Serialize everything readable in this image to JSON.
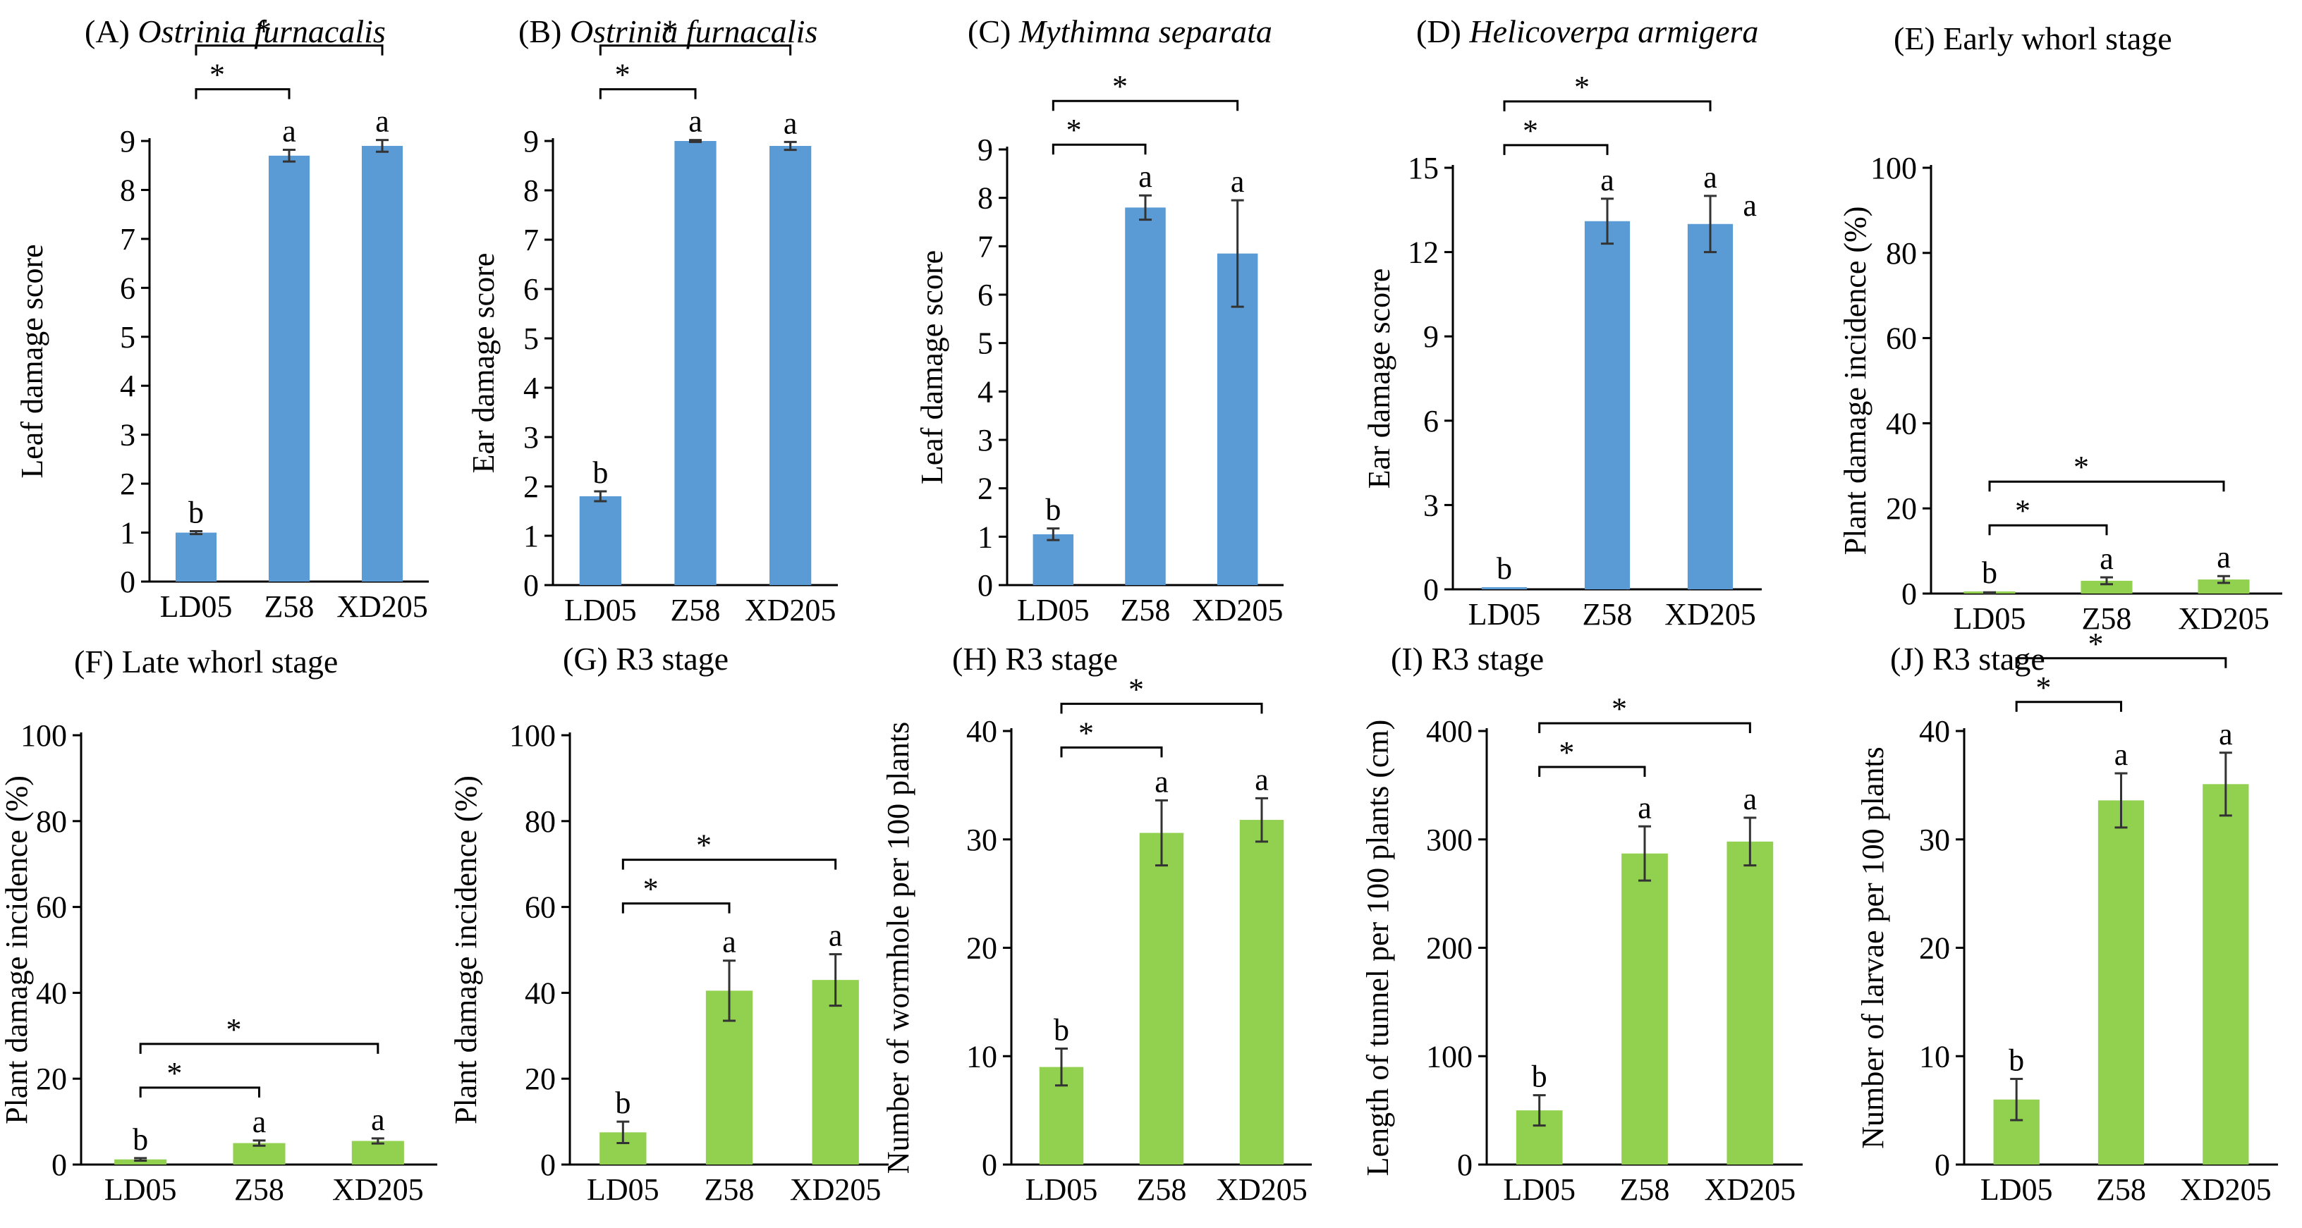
{
  "colors": {
    "blue": "#5b9bd5",
    "green": "#92d050",
    "axis": "#000000",
    "error": "#333333"
  },
  "chart_data": [
    {
      "id": "A",
      "type": "bar",
      "title_prefix": "(A) ",
      "title_italic": "Ostrinia furnacalis",
      "ylabel": "Leaf damage score",
      "ylim": [
        0,
        9
      ],
      "yticks": [
        "0",
        "1",
        "2",
        "3",
        "4",
        "5",
        "6",
        "7",
        "8",
        "9"
      ],
      "categories": [
        "LD05",
        "Z58",
        "XD205"
      ],
      "values": [
        1.0,
        8.7,
        8.9
      ],
      "errors": [
        0.03,
        0.12,
        0.12
      ],
      "letters": [
        "b",
        "a",
        "a"
      ],
      "color": "blue",
      "brackets": [
        {
          "from": 0,
          "to": 1,
          "label": "*"
        },
        {
          "from": 0,
          "to": 2,
          "label": "*"
        }
      ]
    },
    {
      "id": "B",
      "type": "bar",
      "title_prefix": "(B) ",
      "title_italic": "Ostrinia furnacalis",
      "ylabel": "Ear damage score",
      "ylim": [
        0,
        9
      ],
      "yticks": [
        "0",
        "1",
        "2",
        "3",
        "4",
        "5",
        "6",
        "7",
        "8",
        "9"
      ],
      "categories": [
        "LD05",
        "Z58",
        "XD205"
      ],
      "values": [
        1.8,
        9.0,
        8.9
      ],
      "errors": [
        0.1,
        0.02,
        0.08
      ],
      "letters": [
        "b",
        "a",
        "a"
      ],
      "color": "blue",
      "brackets": [
        {
          "from": 0,
          "to": 1,
          "label": "*"
        },
        {
          "from": 0,
          "to": 2,
          "label": "*"
        }
      ]
    },
    {
      "id": "C",
      "type": "bar",
      "title_prefix": "(C) ",
      "title_italic": "Mythimna separata",
      "ylabel": "Leaf damage score",
      "ylim": [
        0,
        9
      ],
      "yticks": [
        "0",
        "1",
        "2",
        "3",
        "4",
        "5",
        "6",
        "7",
        "8",
        "9"
      ],
      "categories": [
        "LD05",
        "Z58",
        "XD205"
      ],
      "values": [
        1.05,
        7.8,
        6.85
      ],
      "errors": [
        0.12,
        0.25,
        1.1
      ],
      "letters": [
        "b",
        "a",
        "a"
      ],
      "color": "blue",
      "brackets": [
        {
          "from": 0,
          "to": 1,
          "label": "*"
        },
        {
          "from": 0,
          "to": 2,
          "label": "*"
        }
      ]
    },
    {
      "id": "D",
      "type": "bar",
      "title_prefix": "(D) ",
      "title_italic": "Helicoverpa armigera",
      "ylabel": "Ear damage score",
      "ylim": [
        0,
        15
      ],
      "yticks": [
        "0",
        "3",
        "6",
        "9",
        "12",
        "15"
      ],
      "categories": [
        "LD05",
        "Z58",
        "XD205"
      ],
      "values": [
        0.05,
        13.1,
        13.0
      ],
      "errors": [
        0.0,
        0.8,
        1.0
      ],
      "letters": [
        "b",
        "a",
        "a"
      ],
      "color": "blue",
      "extra_letter": "a",
      "brackets": [
        {
          "from": 0,
          "to": 1,
          "label": "*"
        },
        {
          "from": 0,
          "to": 2,
          "label": "*"
        }
      ]
    },
    {
      "id": "E",
      "type": "bar",
      "title_prefix": "(E) Early whorl stage",
      "title_italic": "",
      "ylabel": "Plant damage incidence (%)",
      "ylim": [
        0,
        100
      ],
      "yticks": [
        "0",
        "20",
        "40",
        "60",
        "80",
        "100"
      ],
      "categories": [
        "LD05",
        "Z58",
        "XD205"
      ],
      "values": [
        0.2,
        3.0,
        3.3
      ],
      "errors": [
        0.1,
        0.8,
        0.8
      ],
      "letters": [
        "b",
        "a",
        "a"
      ],
      "color": "green",
      "brackets": [
        {
          "from": 0,
          "to": 1,
          "label": "*"
        },
        {
          "from": 0,
          "to": 2,
          "label": "*"
        }
      ]
    },
    {
      "id": "F",
      "type": "bar",
      "title_prefix": "(F) Late whorl stage",
      "title_italic": "",
      "ylabel": "Plant damage incidence (%)",
      "ylim": [
        0,
        100
      ],
      "yticks": [
        "0",
        "20",
        "40",
        "60",
        "80",
        "100"
      ],
      "categories": [
        "LD05",
        "Z58",
        "XD205"
      ],
      "values": [
        1.2,
        5.0,
        5.5
      ],
      "errors": [
        0.3,
        0.6,
        0.6
      ],
      "letters": [
        "b",
        "a",
        "a"
      ],
      "color": "green",
      "brackets": [
        {
          "from": 0,
          "to": 1,
          "label": "*"
        },
        {
          "from": 0,
          "to": 2,
          "label": "*"
        }
      ]
    },
    {
      "id": "G",
      "type": "bar",
      "title_prefix": "(G) R3 stage",
      "title_italic": "",
      "ylabel": "Plant damage incidence (%)",
      "ylim": [
        0,
        100
      ],
      "yticks": [
        "0",
        "20",
        "40",
        "60",
        "80",
        "100"
      ],
      "categories": [
        "LD05",
        "Z58",
        "XD205"
      ],
      "values": [
        7.5,
        40.5,
        43.0
      ],
      "errors": [
        2.5,
        7.0,
        6.0
      ],
      "letters": [
        "b",
        "a",
        "a"
      ],
      "color": "green",
      "brackets": [
        {
          "from": 0,
          "to": 1,
          "label": "*"
        },
        {
          "from": 0,
          "to": 2,
          "label": "*"
        }
      ]
    },
    {
      "id": "H",
      "type": "bar",
      "title_prefix": "(H) R3 stage",
      "title_italic": "",
      "ylabel": "Number of wormhole per 100 plants",
      "ylim": [
        0,
        40
      ],
      "yticks": [
        "0",
        "10",
        "20",
        "30",
        "40"
      ],
      "categories": [
        "LD05",
        "Z58",
        "XD205"
      ],
      "values": [
        9.0,
        30.6,
        31.8
      ],
      "errors": [
        1.7,
        3.0,
        2.0
      ],
      "letters": [
        "b",
        "a",
        "a"
      ],
      "color": "green",
      "brackets": [
        {
          "from": 0,
          "to": 1,
          "label": "*"
        },
        {
          "from": 0,
          "to": 2,
          "label": "*"
        }
      ]
    },
    {
      "id": "I",
      "type": "bar",
      "title_prefix": "(I) R3 stage",
      "title_italic": "",
      "ylabel": "Length of tunnel per 100 plants (cm)",
      "ylim": [
        0,
        400
      ],
      "yticks": [
        "0",
        "100",
        "200",
        "300",
        "400"
      ],
      "categories": [
        "LD05",
        "Z58",
        "XD205"
      ],
      "values": [
        50,
        287,
        298
      ],
      "errors": [
        14,
        25,
        22
      ],
      "letters": [
        "b",
        "a",
        "a"
      ],
      "color": "green",
      "brackets": [
        {
          "from": 0,
          "to": 1,
          "label": "*"
        },
        {
          "from": 0,
          "to": 2,
          "label": "*"
        }
      ]
    },
    {
      "id": "J",
      "type": "bar",
      "title_prefix": "(J) R3 stage",
      "title_italic": "",
      "ylabel": "Number of larvae per 100 plants",
      "ylim": [
        0,
        40
      ],
      "yticks": [
        "0",
        "10",
        "20",
        "30",
        "40"
      ],
      "categories": [
        "LD05",
        "Z58",
        "XD205"
      ],
      "values": [
        6.0,
        33.6,
        35.1
      ],
      "errors": [
        1.9,
        2.5,
        2.9
      ],
      "letters": [
        "b",
        "a",
        "a"
      ],
      "color": "green",
      "brackets": [
        {
          "from": 0,
          "to": 1,
          "label": "*"
        },
        {
          "from": 0,
          "to": 2,
          "label": "*"
        }
      ]
    }
  ]
}
